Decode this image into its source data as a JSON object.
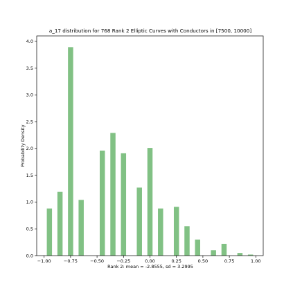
{
  "chart_data": {
    "type": "bar",
    "title": "a_17 distribution for 768 Rank 2 Elliptic Curves with Conductors in [7500, 10000]",
    "xlabel": "Rank 2: mean = -2.8555, sd = 3.2995",
    "ylabel": "Probability Density",
    "xlim": [
      -1.07,
      1.07
    ],
    "ylim": [
      0,
      4.1
    ],
    "grid": false,
    "bar_width": 0.049,
    "bar_color": "#81c184",
    "x": [
      -0.95,
      -0.85,
      -0.75,
      -0.65,
      -0.45,
      -0.35,
      -0.25,
      -0.1,
      0.0,
      0.1,
      0.25,
      0.35,
      0.45,
      0.6,
      0.7,
      0.85,
      0.95
    ],
    "values": [
      0.88,
      1.19,
      3.89,
      1.04,
      1.96,
      2.29,
      1.91,
      1.27,
      2.01,
      0.88,
      0.91,
      0.55,
      0.3,
      0.1,
      0.22,
      0.05,
      0.02
    ],
    "xticks": [
      -1.0,
      -0.75,
      -0.5,
      -0.25,
      0.0,
      0.25,
      0.5,
      0.75,
      1.0
    ],
    "xtick_labels": [
      "−1.00",
      "−0.75",
      "−0.50",
      "−0.25",
      "0.00",
      "0.25",
      "0.50",
      "0.75",
      "1.00"
    ],
    "yticks": [
      0,
      0.5,
      1.0,
      1.5,
      2.0,
      2.5,
      3.0,
      3.5,
      4.0
    ],
    "ytick_labels": [
      "0.0",
      "0.5",
      "1.0",
      "1.5",
      "2.0",
      "2.5",
      "3.0",
      "3.5",
      "4.0"
    ]
  }
}
